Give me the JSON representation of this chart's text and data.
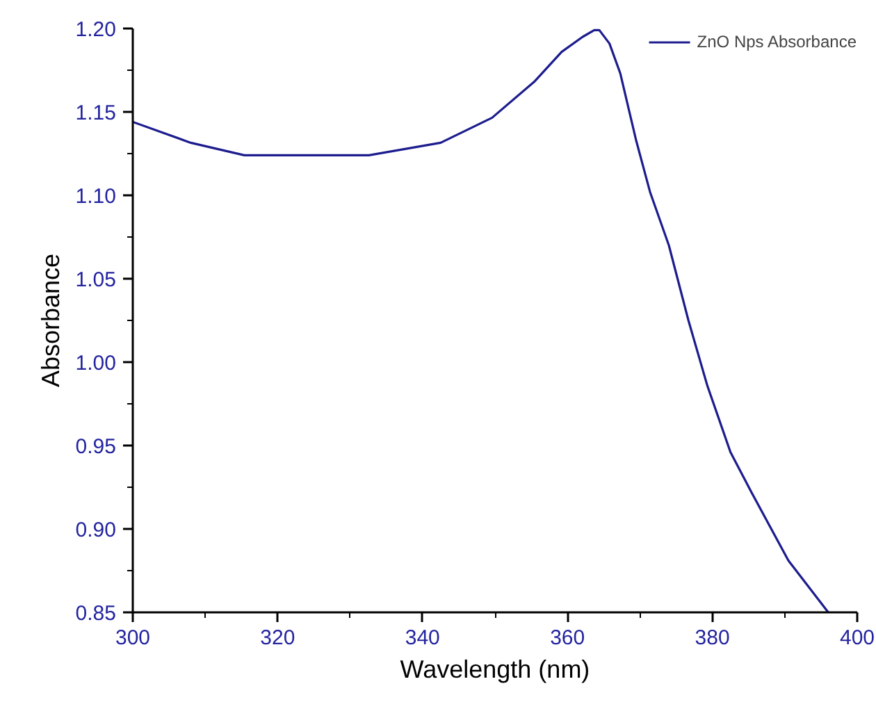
{
  "chart_data": {
    "type": "line",
    "xlabel": "Wavelength (nm)",
    "ylabel": "Absorbance",
    "xlim": [
      300,
      400
    ],
    "ylim": [
      0.85,
      1.2
    ],
    "xticks": [
      300,
      320,
      340,
      360,
      380,
      400
    ],
    "yticks": [
      {
        "value": 0.85,
        "label": "0.85"
      },
      {
        "value": 0.9,
        "label": "0.90"
      },
      {
        "value": 0.95,
        "label": "0.95"
      },
      {
        "value": 1.0,
        "label": "1.00"
      },
      {
        "value": 1.05,
        "label": "1.05"
      },
      {
        "value": 1.1,
        "label": "1.10"
      },
      {
        "value": 1.15,
        "label": "1.15"
      },
      {
        "value": 1.2,
        "label": "1.20"
      }
    ],
    "grid": false,
    "legend": "top right",
    "series": [
      {
        "name": "ZnO Nps Absorbance",
        "color": "#1c1c8e",
        "x": [
          300,
          308,
          315.4,
          332.6,
          342.5,
          349.6,
          355.4,
          359.2,
          362.1,
          363.7,
          364.4,
          365.8,
          367.3,
          369.5,
          371.4,
          374,
          376.7,
          379.3,
          382.5,
          385.4,
          390.5,
          396
        ],
        "values": [
          1.144,
          1.1315,
          1.124,
          1.124,
          1.1315,
          1.1465,
          1.168,
          1.186,
          1.195,
          1.199,
          1.199,
          1.191,
          1.173,
          1.1326,
          1.102,
          1.07,
          1.025,
          0.986,
          0.946,
          0.922,
          0.881,
          0.85
        ]
      }
    ]
  }
}
